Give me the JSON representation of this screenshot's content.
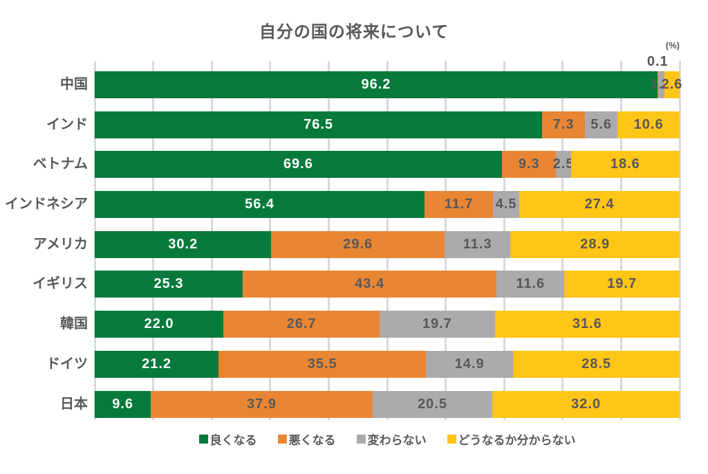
{
  "title": "自分の国の将来について",
  "unit_label": "(%)",
  "colors": {
    "text": "#595757",
    "grid": "#d9d9d9",
    "background": "#ffffff",
    "label_on_green": "#ffffff",
    "label_on_other": "#595757"
  },
  "chart_data": {
    "type": "bar",
    "subtype": "horizontal-stacked",
    "title": "自分の国の将来について",
    "unit": "%",
    "xlim": [
      0,
      100
    ],
    "grid_step": 10,
    "grid_on": true,
    "legend_position": "bottom",
    "value_format_decimals": 1,
    "categories": [
      "中国",
      "インド",
      "ベトナム",
      "インドネシア",
      "アメリカ",
      "イギリス",
      "韓国",
      "ドイツ",
      "日本"
    ],
    "series": [
      {
        "name": "良くなる",
        "color": "#077a3b",
        "values": [
          96.2,
          76.5,
          69.6,
          56.4,
          30.2,
          25.3,
          22.0,
          21.2,
          9.6
        ]
      },
      {
        "name": "悪くなる",
        "color": "#e98634",
        "values": [
          0.1,
          7.3,
          9.3,
          11.7,
          29.6,
          43.4,
          26.7,
          35.5,
          37.9
        ]
      },
      {
        "name": "変わらない",
        "color": "#ababab",
        "values": [
          1.1,
          5.6,
          2.5,
          4.5,
          11.3,
          11.6,
          19.7,
          14.9,
          20.5
        ]
      },
      {
        "name": "どうなるか分からない",
        "color": "#ffc517",
        "values": [
          2.6,
          10.6,
          18.6,
          27.4,
          28.9,
          19.7,
          31.6,
          28.5,
          32.0
        ]
      }
    ]
  }
}
